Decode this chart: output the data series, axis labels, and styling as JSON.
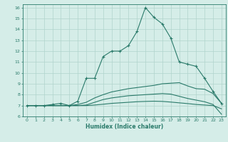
{
  "xlabel": "Humidex (Indice chaleur)",
  "background_color": "#d5ede8",
  "grid_color": "#b0d4cc",
  "line_color": "#2a7a6a",
  "xlim": [
    -0.5,
    23.5
  ],
  "ylim": [
    6,
    16.3
  ],
  "xticks": [
    0,
    1,
    2,
    3,
    4,
    5,
    6,
    7,
    8,
    9,
    10,
    11,
    12,
    13,
    14,
    15,
    16,
    17,
    18,
    19,
    20,
    21,
    22,
    23
  ],
  "yticks": [
    6,
    7,
    8,
    9,
    10,
    11,
    12,
    13,
    14,
    15,
    16
  ],
  "line1_x": [
    0,
    1,
    2,
    3,
    4,
    5,
    6,
    7,
    8,
    9,
    10,
    11,
    12,
    13,
    14,
    15,
    16,
    17,
    18,
    19,
    20,
    21,
    22,
    23
  ],
  "line1_y": [
    7.0,
    7.0,
    7.0,
    7.1,
    7.2,
    7.0,
    7.4,
    9.5,
    9.5,
    11.5,
    12.0,
    12.0,
    12.5,
    13.8,
    16.0,
    15.1,
    14.5,
    13.2,
    11.0,
    10.8,
    10.6,
    9.5,
    8.3,
    7.2
  ],
  "line2_x": [
    0,
    1,
    2,
    3,
    4,
    5,
    6,
    7,
    8,
    9,
    10,
    11,
    12,
    13,
    14,
    15,
    16,
    17,
    18,
    19,
    20,
    21,
    22,
    23
  ],
  "line2_y": [
    7.0,
    7.0,
    7.0,
    7.0,
    7.0,
    7.0,
    7.1,
    7.3,
    7.7,
    8.0,
    8.25,
    8.4,
    8.55,
    8.65,
    8.75,
    8.85,
    9.0,
    9.05,
    9.1,
    8.8,
    8.55,
    8.5,
    8.1,
    7.2
  ],
  "line3_x": [
    0,
    1,
    2,
    3,
    4,
    5,
    6,
    7,
    8,
    9,
    10,
    11,
    12,
    13,
    14,
    15,
    16,
    17,
    18,
    19,
    20,
    21,
    22,
    23
  ],
  "line3_y": [
    7.0,
    7.0,
    7.0,
    7.0,
    7.0,
    7.0,
    7.0,
    7.05,
    7.3,
    7.55,
    7.7,
    7.8,
    7.9,
    7.95,
    8.0,
    8.05,
    8.1,
    8.05,
    7.85,
    7.65,
    7.5,
    7.35,
    7.1,
    6.2
  ],
  "line4_x": [
    0,
    1,
    2,
    3,
    4,
    5,
    6,
    7,
    8,
    9,
    10,
    11,
    12,
    13,
    14,
    15,
    16,
    17,
    18,
    19,
    20,
    21,
    22,
    23
  ],
  "line4_y": [
    7.0,
    7.0,
    7.0,
    7.0,
    7.0,
    7.0,
    7.0,
    7.0,
    7.05,
    7.12,
    7.2,
    7.25,
    7.3,
    7.35,
    7.38,
    7.4,
    7.38,
    7.32,
    7.25,
    7.18,
    7.1,
    7.05,
    7.0,
    6.7
  ]
}
